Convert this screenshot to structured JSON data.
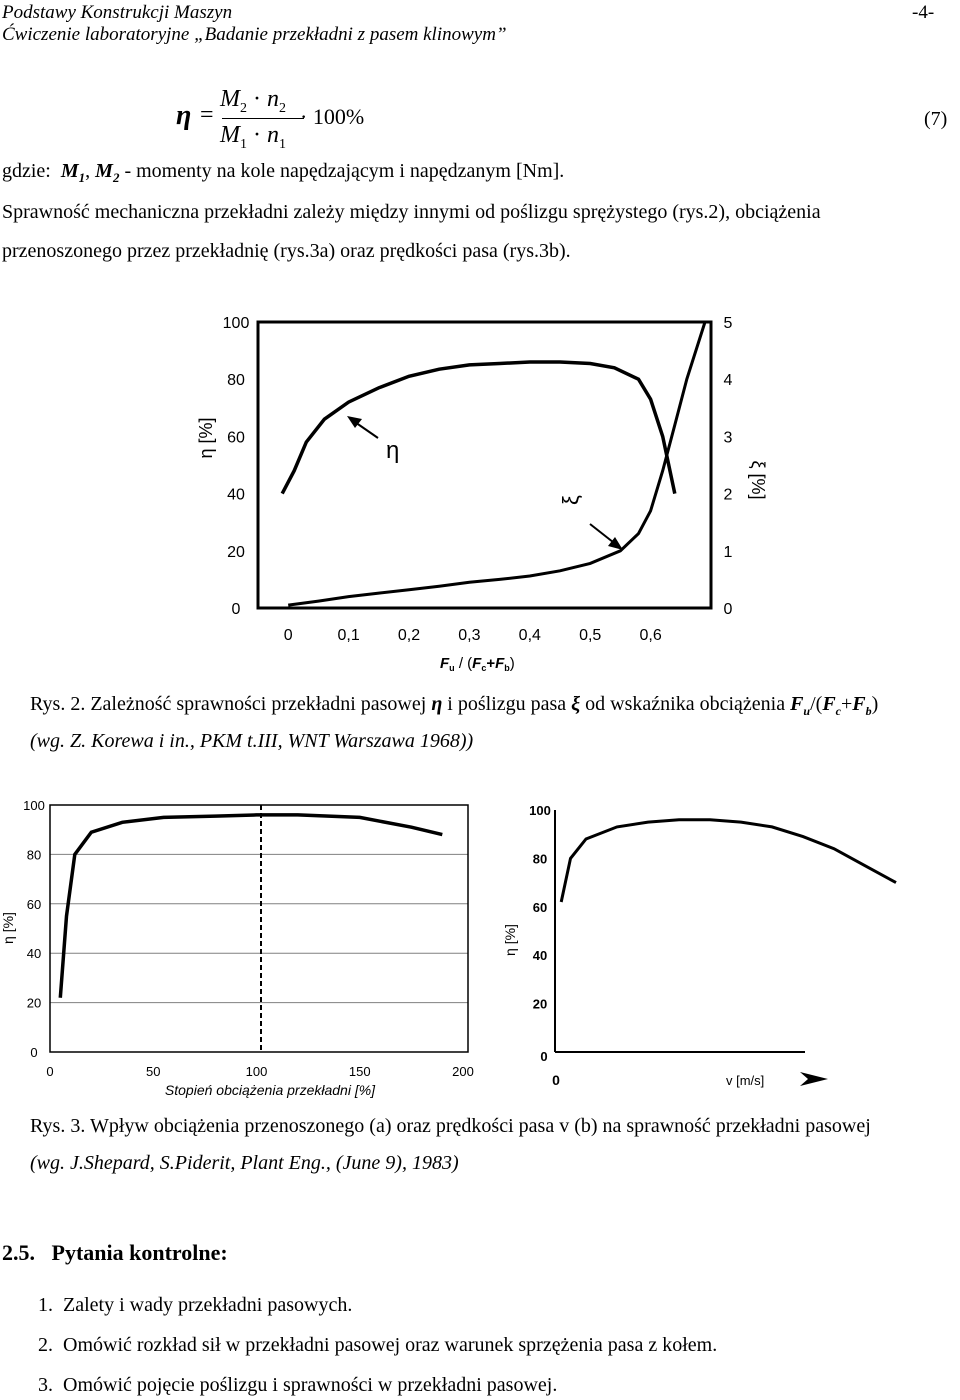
{
  "header": {
    "title": "Podstawy Konstrukcji Maszyn",
    "page_number": "-4-",
    "subtitle": "Ćwiczenie laboratoryjne „Badanie przekładni z pasem klinowym”"
  },
  "equation": {
    "lhs": "η",
    "equals": "=",
    "num_M": "M",
    "num_M_sub": "2",
    "num_dot": "·",
    "num_n": "n",
    "num_n_sub": "2",
    "den_M": "M",
    "den_M_sub": "1",
    "den_dot": "·",
    "den_n": "n",
    "den_n_sub": "1",
    "factor": "· 100%",
    "number": "(7)"
  },
  "paragraphs": {
    "gdzie_label": "gdzie:",
    "gdzie_m1": "M",
    "gdzie_m1_sub": "1",
    "gdzie_sep": ", ",
    "gdzie_m2": "M",
    "gdzie_m2_sub": "2",
    "gdzie_rest": " - momenty na kole napędzającym i napędzanym [Nm].",
    "p1_line1": "Sprawność mechaniczna przekładni zależy między innymi od poślizgu sprężystego (rys.2), obciążenia",
    "p1_line2": "przenoszonego przez przekładnię (rys.3a) oraz prędkości pasa (rys.3b)."
  },
  "fig2": {
    "caption_prefix": "Rys. 2. Zależność sprawności przekładni pasowej ",
    "caption_eta": "η",
    "caption_mid": " i poślizgu pasa ",
    "caption_xi": "ξ",
    "caption_mid2": " od wskaźnika obciążenia ",
    "caption_F": "F",
    "caption_Fu_sub": "u",
    "caption_slash": "/(",
    "caption_F2": "F",
    "caption_Fc_sub": "c",
    "caption_plus": "+",
    "caption_F3": "F",
    "caption_Fb_sub": "b",
    "caption_close": ")",
    "source": "(wg. Z. Korewa i in., PKM t.III, WNT Warszawa 1968))",
    "chart": {
      "left_ylabel": "η [%]",
      "right_ylabel": "ξ [%]",
      "xlabel_F": "F",
      "xlabel_u": "u",
      "xlabel_mid": " / (",
      "xlabel_F2": "F",
      "xlabel_c": "c",
      "xlabel_plus": "+",
      "xlabel_F3": "F",
      "xlabel_b": "b",
      "xlabel_close": ")",
      "eta_annotation": "η",
      "xi_annotation": "ξ"
    }
  },
  "fig3": {
    "caption": "Rys. 3. Wpływ obciążenia przenoszonego (a) oraz prędkości pasa v (b) na sprawność przekładni pasowej",
    "source": "(wg. J.Shepard, S.Piderit, Plant Eng., (June 9), 1983)",
    "chart_a": {
      "ylabel": "η [%]",
      "xlabel": "Stopień obciążenia przekładni [%]"
    },
    "chart_b": {
      "ylabel": "η [%]",
      "xlabel": "v [m/s]",
      "x_origin": "0"
    }
  },
  "section": {
    "title": "2.5.   Pytania kontrolne:",
    "questions": [
      {
        "num": "1.",
        "text": "Zalety i wady przekładni pasowych."
      },
      {
        "num": "2.",
        "text": "Omówić rozkład sił w przekładni pasowej oraz warunek sprzężenia pasa z kołem."
      },
      {
        "num": "3.",
        "text": "Omówić pojęcie poślizgu i sprawności w przekładni pasowej."
      }
    ]
  },
  "chart_data": [
    {
      "type": "line",
      "title": "",
      "xlabel": "Fu / (Fc+Fb)",
      "ylabel": "η [%]",
      "y2label": "ξ [%]",
      "x_ticks": [
        "0",
        "0,1",
        "0,2",
        "0,3",
        "0,4",
        "0,5",
        "0,6"
      ],
      "y_ticks": [
        "0",
        "20",
        "40",
        "60",
        "80",
        "100"
      ],
      "y2_ticks": [
        "0",
        "1",
        "2",
        "3",
        "4",
        "5"
      ],
      "xlim": [
        -0.05,
        0.7
      ],
      "ylim": [
        0,
        100
      ],
      "y2lim": [
        0,
        5
      ],
      "grid": false,
      "series": [
        {
          "name": "η",
          "axis": "left",
          "x": [
            -0.01,
            0.01,
            0.03,
            0.06,
            0.1,
            0.15,
            0.2,
            0.25,
            0.3,
            0.35,
            0.4,
            0.45,
            0.5,
            0.54,
            0.58,
            0.6,
            0.62,
            0.64
          ],
          "y": [
            40,
            48,
            58,
            66,
            72,
            77,
            81,
            83.5,
            85,
            85.5,
            86,
            86,
            85.5,
            84,
            80,
            73,
            60,
            40
          ]
        },
        {
          "name": "ξ",
          "axis": "right",
          "x": [
            0.0,
            0.05,
            0.1,
            0.15,
            0.2,
            0.25,
            0.3,
            0.35,
            0.4,
            0.45,
            0.5,
            0.55,
            0.58,
            0.6,
            0.62,
            0.64,
            0.66,
            0.69
          ],
          "y": [
            0.05,
            0.12,
            0.2,
            0.26,
            0.32,
            0.38,
            0.45,
            0.5,
            0.56,
            0.65,
            0.78,
            1.0,
            1.3,
            1.7,
            2.4,
            3.2,
            4.0,
            5.0
          ]
        }
      ]
    },
    {
      "type": "line",
      "title": "",
      "xlabel": "Stopień obciążenia przekładni [%]",
      "ylabel": "η [%]",
      "x_ticks": [
        "0",
        "50",
        "100",
        "150",
        "200"
      ],
      "y_ticks": [
        "0",
        "20",
        "40",
        "60",
        "80",
        "100"
      ],
      "xlim": [
        0,
        200
      ],
      "ylim": [
        0,
        100
      ],
      "grid": true,
      "reference_line_x": 100,
      "series": [
        {
          "x": [
            5,
            8,
            12,
            20,
            35,
            55,
            80,
            100,
            120,
            150,
            175,
            190
          ],
          "y": [
            22,
            55,
            80,
            89,
            93,
            95,
            95.5,
            96,
            96,
            95,
            91,
            88
          ]
        }
      ]
    },
    {
      "type": "line",
      "title": "",
      "xlabel": "v [m/s]",
      "ylabel": "η [%]",
      "x_ticks": [
        "0"
      ],
      "y_ticks": [
        "0",
        "20",
        "40",
        "60",
        "80",
        "100"
      ],
      "ylim": [
        0,
        100
      ],
      "grid": false,
      "series": [
        {
          "x": [
            0.2,
            0.5,
            1,
            2,
            3,
            4,
            5,
            6,
            7,
            8,
            9,
            10,
            11
          ],
          "y": [
            62,
            80,
            88,
            93,
            95,
            96,
            96,
            95,
            93,
            89,
            84,
            77,
            70
          ]
        }
      ]
    }
  ]
}
